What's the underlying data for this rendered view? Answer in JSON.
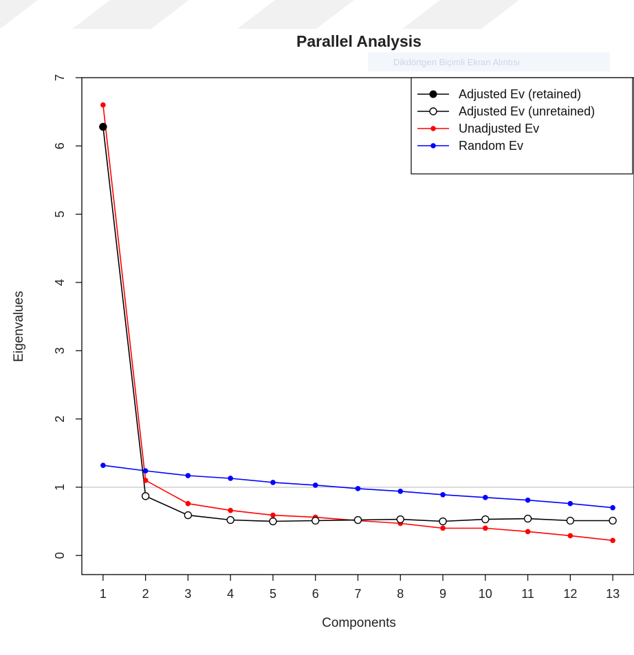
{
  "chart_data": {
    "type": "line",
    "title": "Parallel Analysis",
    "xlabel": "Components",
    "ylabel": "Eigenvalues",
    "x": [
      1,
      2,
      3,
      4,
      5,
      6,
      7,
      8,
      9,
      10,
      11,
      12,
      13
    ],
    "xticks": [
      "1",
      "2",
      "3",
      "4",
      "5",
      "6",
      "7",
      "8",
      "9",
      "10",
      "11",
      "12",
      "13"
    ],
    "yticks": [
      "0",
      "1",
      "2",
      "3",
      "4",
      "5",
      "6",
      "7"
    ],
    "xlim": [
      0.5,
      13.5
    ],
    "ylim": [
      -0.28,
      7.0
    ],
    "reference_line_y": 1,
    "grid": false,
    "legend_position": "top-right",
    "series": [
      {
        "name": "Random Ev",
        "color": "#0000ff",
        "marker": "filled-dot",
        "values": [
          1.32,
          1.24,
          1.17,
          1.13,
          1.07,
          1.03,
          0.98,
          0.94,
          0.89,
          0.85,
          0.81,
          0.76,
          0.7
        ]
      },
      {
        "name": "Unadjusted Ev",
        "color": "#ff0000",
        "marker": "filled-dot",
        "values": [
          6.6,
          1.1,
          0.76,
          0.66,
          0.59,
          0.56,
          0.51,
          0.47,
          0.4,
          0.4,
          0.35,
          0.29,
          0.22
        ]
      },
      {
        "name": "Adjusted Ev (unretained)",
        "color": "#000000",
        "marker": "open-circle",
        "values": [
          6.28,
          0.87,
          0.59,
          0.52,
          0.5,
          0.51,
          0.52,
          0.53,
          0.5,
          0.53,
          0.54,
          0.51,
          0.51
        ]
      }
    ],
    "retained": {
      "name": "Adjusted Ev (retained)",
      "color": "#000000",
      "marker": "filled-big-dot",
      "x": [
        1
      ],
      "values": [
        6.28
      ]
    },
    "legend": [
      {
        "label": "Adjusted Ev (retained)",
        "color": "#000000",
        "marker": "filled-big-dot"
      },
      {
        "label": "Adjusted Ev (unretained)",
        "color": "#000000",
        "marker": "open-circle"
      },
      {
        "label": "Unadjusted Ev",
        "color": "#ff0000",
        "marker": "filled-dot"
      },
      {
        "label": "Random Ev",
        "color": "#0000ff",
        "marker": "filled-dot"
      }
    ]
  },
  "overlay": {
    "watermark_text": "Dikdörtgen Biçimli Ekran Alıntısı"
  }
}
